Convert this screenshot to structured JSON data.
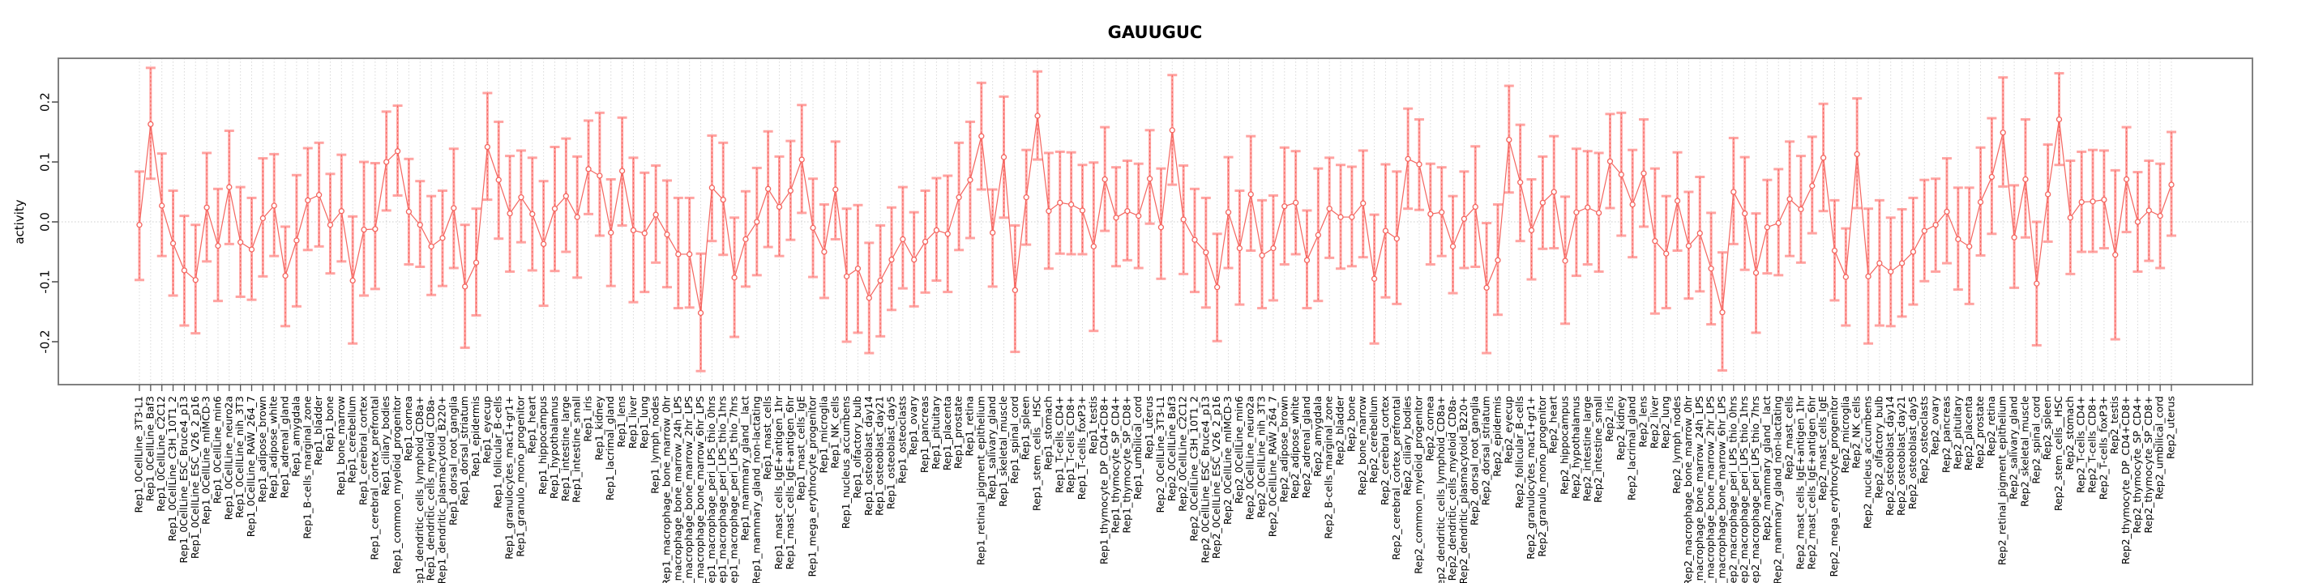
{
  "chart_data": {
    "type": "scatter",
    "subtype": "errorbar",
    "title": "GAUUGUC",
    "xlabel": "",
    "ylabel": "activity",
    "ylim": [
      -0.27,
      0.28
    ],
    "yticks": [
      0.2,
      0.1,
      0.0,
      -0.1,
      -0.2
    ],
    "ytick_labels": [
      "0.2",
      "0.1",
      "0.0",
      "-0.1",
      "-0.2"
    ],
    "grid": "vertical dotted gridline per category; dotted horizontal line at y=0",
    "legend": "none",
    "colors": {
      "error_bar": "#ffa3a1",
      "point": "#f4655f",
      "connector": "#f4655f",
      "grid": "#d9d9d9",
      "box": "#808080",
      "text": "#000000",
      "background": "#ffffff"
    },
    "categories": [
      "Rep1_0CellLine_3T3-L1",
      "Rep1_0CellLine_Baf3",
      "Rep1_0CellLine_C2C12",
      "Rep1_0CellLine_C3H_10T1_2",
      "Rep1_0CellLine_ESC_Bruce4_p13",
      "Rep1_0CellLine_ESC_V26_2_p16",
      "Rep1_0CellLine_mIMCD-3",
      "Rep1_0CellLine_min6",
      "Rep1_0CellLine_neuro2a",
      "Rep1_0CellLine_nih_3T3",
      "Rep1_0CellLine_RAW_264_7",
      "Rep1_adipose_brown",
      "Rep1_adipose_white",
      "Rep1_adrenal_gland",
      "Rep1_amygdala",
      "Rep1_B-cells_marginal_zone",
      "Rep1_bladder",
      "Rep1_bone",
      "Rep1_bone_marrow",
      "Rep1_cerebellum",
      "Rep1_cerebral_cortex",
      "Rep1_cerebral_cortex_prefrontal",
      "Rep1_ciliary_bodies",
      "Rep1_common_myeloid_progenitor",
      "Rep1_cornea",
      "Rep1_dendritic_cells_lymphoid_CD8a+",
      "Rep1_dendritic_cells_myeloid_CD8a-",
      "Rep1_dendritic_plasmacytoid_B220+",
      "Rep1_dorsal_root_ganglia",
      "Rep1_dorsal_striatum",
      "Rep1_epidermis",
      "Rep1_eyecup",
      "Rep1_follicular_B-cells",
      "Rep1_granulocytes_mac1+gr1+",
      "Rep1_granulo_mono_progenitor",
      "Rep1_heart",
      "Rep1_hippocampus",
      "Rep1_hypothalamus",
      "Rep1_intestine_large",
      "Rep1_intestine_small",
      "Rep1_iris",
      "Rep1_kidney",
      "Rep1_lacrimal_gland",
      "Rep1_lens",
      "Rep1_liver",
      "Rep1_lung",
      "Rep1_lymph_nodes",
      "Rep1_macrophage_bone_marrow_0hr",
      "Rep1_macrophage_bone_marrow_24h_LPS",
      "Rep1_macrophage_bone_marrow_2hr_LPS",
      "Rep1_macrophage_bone_marrow_6hr_LPS",
      "Rep1_macrophage_peri_LPS_thio_0hrs",
      "Rep1_macrophage_peri_LPS_thio_1hrs",
      "Rep1_macrophage_peri_LPS_thio_7hrs",
      "Rep1_mammary_gland__lact",
      "Rep1_mammary_gland_non-lactating",
      "Rep1_mast_cells",
      "Rep1_mast_cells_IgE+antigen_1hr",
      "Rep1_mast_cells_IgE+antigen_6hr",
      "Rep1_mast_cells_IgE",
      "Rep1_mega_erythrocyte_progenitor",
      "Rep1_microglia",
      "Rep1_NK_cells",
      "Rep1_nucleus_accumbens",
      "Rep1_olfactory_bulb",
      "Rep1_osteoblast_day14",
      "Rep1_osteoblast_day21",
      "Rep1_osteoblast_day5",
      "Rep1_osteoclasts",
      "Rep1_ovary",
      "Rep1_pancreas",
      "Rep1_pituitary",
      "Rep1_placenta",
      "Rep1_prostate",
      "Rep1_retina",
      "Rep1_retinal_pigment_epithelium",
      "Rep1_salivary_gland",
      "Rep1_skeletal_muscle",
      "Rep1_spinal_cord",
      "Rep1_spleen",
      "Rep1_stem_cells__HSC",
      "Rep1_stomach",
      "Rep1_T-cells_CD4+",
      "Rep1_T-cells_CD8+",
      "Rep1_T-cells_foxP3+",
      "Rep1_testis",
      "Rep1_thymocyte_DP_CD4+CD8+",
      "Rep1_thymocyte_SP_CD4+",
      "Rep1_thymocyte_SP_CD8+",
      "Rep1_umbilical_cord",
      "Rep1_uterus",
      "Rep2_0CellLine_3T3-L1",
      "Rep2_0CellLine_Baf3",
      "Rep2_0CellLine_C2C12",
      "Rep2_0CellLine_C3H_10T1_2",
      "Rep2_0CellLine_ESC_Bruce4_p13",
      "Rep2_0CellLine_ESC_V26_2_p16",
      "Rep2_0CellLine_mIMCD-3",
      "Rep2_0CellLine_min6",
      "Rep2_0CellLine_neuro2a",
      "Rep2_0CellLine_nih_3T3",
      "Rep2_0CellLine_RAW_264_7",
      "Rep2_adipose_brown",
      "Rep2_adipose_white",
      "Rep2_adrenal_gland",
      "Rep2_amygdala",
      "Rep2_B-cells_marginal_zone",
      "Rep2_bladder",
      "Rep2_bone",
      "Rep2_bone_marrow",
      "Rep2_cerebellum",
      "Rep2_cerebral_cortex",
      "Rep2_cerebral_cortex_prefrontal",
      "Rep2_ciliary_bodies",
      "Rep2_common_myeloid_progenitor",
      "Rep2_cornea",
      "Rep2_dendritic_cells_lymphoid_CD8a+",
      "Rep2_dendritic_cells_myeloid_CD8a-",
      "Rep2_dendritic_plasmacytoid_B220+",
      "Rep2_dorsal_root_ganglia",
      "Rep2_dorsal_striatum",
      "Rep2_epidermis",
      "Rep2_eyecup",
      "Rep2_follicular_B-cells",
      "Rep2_granulocytes_mac1+gr1+",
      "Rep2_granulo_mono_progenitor",
      "Rep2_heart",
      "Rep2_hippocampus",
      "Rep2_hypothalamus",
      "Rep2_intestine_large",
      "Rep2_intestine_small",
      "Rep2_iris",
      "Rep2_kidney",
      "Rep2_lacrimal_gland",
      "Rep2_lens",
      "Rep2_liver",
      "Rep2_lung",
      "Rep2_lymph_nodes",
      "Rep2_macrophage_bone_marrow_0hr",
      "Rep2_macrophage_bone_marrow_24h_LPS",
      "Rep2_macrophage_bone_marrow_2hr_LPS",
      "Rep2_macrophage_bone_marrow_6hr_LPS",
      "Rep2_macrophage_peri_LPS_thio_0hrs",
      "Rep2_macrophage_peri_LPS_thio_1hrs",
      "Rep2_macrophage_peri_LPS_thio_7hrs",
      "Rep2_mammary_gland__lact",
      "Rep2_mammary_gland_non-lactating",
      "Rep2_mast_cells",
      "Rep2_mast_cells_IgE+antigen_1hr",
      "Rep2_mast_cells_IgE+antigen_6hr",
      "Rep2_mast_cells_IgE",
      "Rep2_mega_erythrocyte_progenitor",
      "Rep2_microglia",
      "Rep2_NK_cells",
      "Rep2_nucleus_accumbens",
      "Rep2_olfactory_bulb",
      "Rep2_osteoblast_day14",
      "Rep2_osteoblast_day21",
      "Rep2_osteoblast_day5",
      "Rep2_osteoclasts",
      "Rep2_ovary",
      "Rep2_pancreas",
      "Rep2_pituitary",
      "Rep2_placenta",
      "Rep2_prostate",
      "Rep2_retina",
      "Rep2_retinal_pigment_epithelium",
      "Rep2_salivary_gland",
      "Rep2_skeletal_muscle",
      "Rep2_spinal_cord",
      "Rep2_spleen",
      "Rep2_stem_cells__HSC",
      "Rep2_stomach",
      "Rep2_T-cells_CD4+",
      "Rep2_T-cells_CD8+",
      "Rep2_T-cells_foxP3+",
      "Rep2_testis",
      "Rep2_thymocyte_DP_CD4+CD8+",
      "Rep2_thymocyte_SP_CD4+",
      "Rep2_thymocyte_SP_CD8+",
      "Rep2_umbilical_cord",
      "Rep2_uterus"
    ],
    "series": [
      {
        "name": "activity",
        "values": [
          -0.005,
          0.163,
          0.027,
          -0.036,
          -0.081,
          -0.097,
          0.024,
          -0.04,
          0.058,
          -0.034,
          -0.046,
          0.006,
          0.027,
          -0.09,
          -0.031,
          0.036,
          0.045,
          -0.005,
          0.018,
          -0.098,
          -0.013,
          -0.012,
          0.1,
          0.118,
          0.017,
          -0.005,
          -0.041,
          -0.027,
          0.023,
          -0.108,
          -0.068,
          0.125,
          0.07,
          0.014,
          0.041,
          0.013,
          -0.037,
          0.022,
          0.043,
          0.008,
          0.088,
          0.077,
          -0.018,
          0.085,
          -0.014,
          -0.019,
          0.012,
          -0.021,
          -0.054,
          -0.054,
          -0.152,
          0.057,
          0.037,
          -0.093,
          -0.029,
          0.0,
          0.055,
          0.025,
          0.052,
          0.104,
          -0.01,
          -0.05,
          0.054,
          -0.091,
          -0.078,
          -0.127,
          -0.098,
          -0.063,
          -0.029,
          -0.063,
          -0.033,
          -0.014,
          -0.02,
          0.041,
          0.07,
          0.143,
          -0.018,
          0.108,
          -0.114,
          0.041,
          0.177,
          0.018,
          0.032,
          0.029,
          0.019,
          -0.041,
          0.071,
          0.007,
          0.018,
          0.01,
          0.072,
          -0.009,
          0.153,
          0.004,
          -0.03,
          -0.051,
          -0.109,
          0.016,
          -0.044,
          0.046,
          -0.056,
          -0.044,
          0.026,
          0.032,
          -0.064,
          -0.022,
          0.022,
          0.008,
          0.008,
          0.031,
          -0.095,
          -0.015,
          -0.028,
          0.105,
          0.096,
          0.013,
          0.016,
          -0.041,
          0.005,
          0.025,
          -0.11,
          -0.064,
          0.137,
          0.066,
          -0.014,
          0.032,
          0.05,
          -0.065,
          0.016,
          0.024,
          0.015,
          0.101,
          0.079,
          0.029,
          0.081,
          -0.032,
          -0.053,
          0.035,
          -0.04,
          -0.019,
          -0.078,
          -0.151,
          0.05,
          0.014,
          -0.085,
          -0.009,
          -0.002,
          0.038,
          0.021,
          0.06,
          0.107,
          -0.048,
          -0.092,
          0.113,
          -0.091,
          -0.069,
          -0.083,
          -0.069,
          -0.05,
          -0.015,
          -0.005,
          0.017,
          -0.029,
          -0.041,
          0.033,
          0.075,
          0.149,
          -0.026,
          0.071,
          -0.103,
          0.046,
          0.171,
          0.007,
          0.033,
          0.034,
          0.037,
          -0.055,
          0.071,
          0.0,
          0.019,
          0.01,
          0.062
        ],
        "ci_low": [
          -0.097,
          0.072,
          -0.057,
          -0.123,
          -0.173,
          -0.186,
          -0.066,
          -0.132,
          -0.037,
          -0.125,
          -0.13,
          -0.091,
          -0.057,
          -0.174,
          -0.141,
          -0.047,
          -0.041,
          -0.086,
          -0.066,
          -0.203,
          -0.123,
          -0.112,
          0.019,
          0.044,
          -0.071,
          -0.075,
          -0.122,
          -0.107,
          -0.077,
          -0.21,
          -0.156,
          0.037,
          -0.028,
          -0.083,
          -0.034,
          -0.081,
          -0.14,
          -0.082,
          -0.05,
          -0.093,
          0.013,
          -0.023,
          -0.107,
          -0.006,
          -0.134,
          -0.117,
          -0.068,
          -0.109,
          -0.144,
          -0.143,
          -0.249,
          -0.032,
          -0.055,
          -0.192,
          -0.108,
          -0.089,
          -0.042,
          -0.057,
          -0.03,
          0.015,
          -0.092,
          -0.127,
          -0.029,
          -0.2,
          -0.185,
          -0.219,
          -0.191,
          -0.147,
          -0.111,
          -0.141,
          -0.118,
          -0.098,
          -0.117,
          -0.047,
          -0.027,
          0.054,
          -0.108,
          0.007,
          -0.217,
          -0.038,
          0.104,
          -0.078,
          -0.053,
          -0.054,
          -0.054,
          -0.182,
          -0.015,
          -0.074,
          -0.064,
          -0.077,
          -0.003,
          -0.095,
          0.062,
          -0.087,
          -0.117,
          -0.143,
          -0.199,
          -0.077,
          -0.138,
          -0.048,
          -0.144,
          -0.131,
          -0.071,
          -0.054,
          -0.144,
          -0.132,
          -0.06,
          -0.078,
          -0.074,
          -0.059,
          -0.203,
          -0.126,
          -0.137,
          0.022,
          0.02,
          -0.071,
          -0.057,
          -0.119,
          -0.077,
          -0.075,
          -0.219,
          -0.155,
          0.049,
          -0.032,
          -0.096,
          -0.045,
          -0.044,
          -0.17,
          -0.09,
          -0.071,
          -0.083,
          0.023,
          -0.023,
          -0.059,
          -0.008,
          -0.153,
          -0.144,
          -0.048,
          -0.128,
          -0.116,
          -0.171,
          -0.248,
          -0.037,
          -0.08,
          -0.185,
          -0.086,
          -0.089,
          -0.057,
          -0.068,
          -0.019,
          0.018,
          -0.131,
          -0.173,
          0.023,
          -0.203,
          -0.173,
          -0.174,
          -0.158,
          -0.138,
          -0.099,
          -0.083,
          -0.069,
          -0.113,
          -0.137,
          -0.056,
          -0.02,
          0.059,
          -0.11,
          -0.026,
          -0.206,
          -0.033,
          0.095,
          -0.087,
          -0.05,
          -0.05,
          -0.044,
          -0.196,
          -0.017,
          -0.083,
          -0.065,
          -0.077,
          -0.023
        ],
        "ci_high": [
          0.084,
          0.257,
          0.114,
          0.052,
          0.01,
          -0.005,
          0.115,
          0.055,
          0.152,
          0.058,
          0.04,
          0.106,
          0.113,
          -0.008,
          0.078,
          0.123,
          0.132,
          0.08,
          0.112,
          0.009,
          0.1,
          0.098,
          0.184,
          0.194,
          0.105,
          0.068,
          0.043,
          0.052,
          0.122,
          -0.005,
          0.022,
          0.215,
          0.167,
          0.11,
          0.119,
          0.107,
          0.068,
          0.125,
          0.139,
          0.109,
          0.169,
          0.182,
          0.071,
          0.174,
          0.107,
          0.082,
          0.094,
          0.069,
          0.04,
          0.04,
          -0.053,
          0.144,
          0.132,
          0.007,
          0.051,
          0.09,
          0.151,
          0.109,
          0.135,
          0.195,
          0.072,
          0.029,
          0.134,
          0.022,
          0.028,
          -0.035,
          -0.006,
          0.024,
          0.058,
          0.016,
          0.052,
          0.073,
          0.077,
          0.132,
          0.167,
          0.232,
          0.054,
          0.209,
          -0.006,
          0.12,
          0.251,
          0.115,
          0.117,
          0.116,
          0.095,
          0.099,
          0.158,
          0.091,
          0.102,
          0.097,
          0.153,
          0.089,
          0.245,
          0.094,
          0.055,
          0.04,
          -0.02,
          0.108,
          0.052,
          0.143,
          0.036,
          0.044,
          0.124,
          0.118,
          0.019,
          0.089,
          0.107,
          0.095,
          0.092,
          0.119,
          0.012,
          0.096,
          0.084,
          0.189,
          0.171,
          0.097,
          0.091,
          0.043,
          0.084,
          0.126,
          -0.002,
          0.029,
          0.227,
          0.162,
          0.071,
          0.109,
          0.143,
          0.042,
          0.122,
          0.118,
          0.115,
          0.18,
          0.182,
          0.12,
          0.171,
          0.089,
          0.043,
          0.116,
          0.05,
          0.075,
          0.015,
          -0.051,
          0.14,
          0.108,
          0.014,
          0.07,
          0.088,
          0.134,
          0.11,
          0.142,
          0.197,
          0.036,
          -0.011,
          0.206,
          0.022,
          0.036,
          0.007,
          0.021,
          0.04,
          0.07,
          0.072,
          0.106,
          0.057,
          0.057,
          0.124,
          0.173,
          0.241,
          0.061,
          0.171,
          0.0,
          0.129,
          0.248,
          0.102,
          0.117,
          0.12,
          0.119,
          0.086,
          0.158,
          0.083,
          0.102,
          0.097,
          0.15
        ]
      }
    ]
  }
}
